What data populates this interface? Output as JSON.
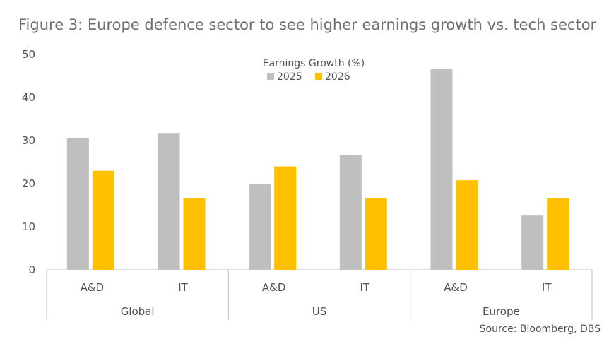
{
  "chart_data": {
    "type": "bar",
    "title": "Figure 3: Europe defence sector to see higher earnings growth vs. tech sector",
    "legend_title": "Earnings Growth (%)",
    "legend_position": "top-center",
    "ylim": [
      0,
      50
    ],
    "yticks": [
      0,
      10,
      20,
      30,
      40,
      50
    ],
    "grid": false,
    "groups": [
      {
        "name": "Global",
        "categories": [
          "A&D",
          "IT"
        ]
      },
      {
        "name": "US",
        "categories": [
          "A&D",
          "IT"
        ]
      },
      {
        "name": "Europe",
        "categories": [
          "A&D",
          "IT"
        ]
      }
    ],
    "series": [
      {
        "name": "2025",
        "color": "#bfbfbf",
        "values": [
          30.6,
          31.6,
          19.9,
          26.6,
          46.6,
          12.6
        ]
      },
      {
        "name": "2026",
        "color": "#ffc000",
        "values": [
          23.0,
          16.7,
          24.0,
          16.7,
          20.8,
          16.6
        ]
      }
    ],
    "source": "Source: Bloomberg, DBS"
  }
}
